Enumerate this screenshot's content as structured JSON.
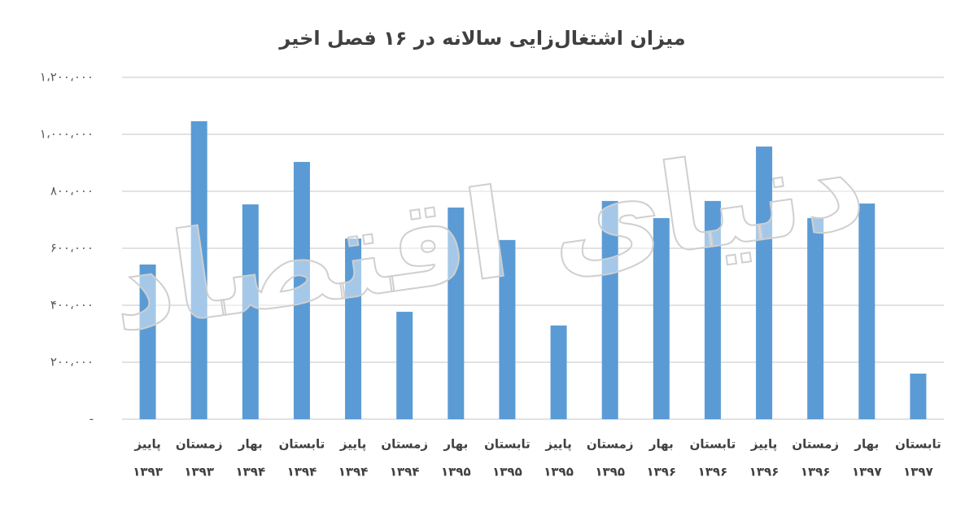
{
  "chart_data": {
    "type": "bar",
    "title": "میزان اشتغال‌زایی سالانه در ۱۶ فصل اخیر",
    "watermark": "دنیای اقتصاد",
    "categories": [
      [
        "پاییز",
        "۱۳۹۳"
      ],
      [
        "زمستان",
        "۱۳۹۳"
      ],
      [
        "بهار",
        "۱۳۹۴"
      ],
      [
        "تابستان",
        "۱۳۹۴"
      ],
      [
        "پاییز",
        "۱۳۹۴"
      ],
      [
        "زمستان",
        "۱۳۹۴"
      ],
      [
        "بهار",
        "۱۳۹۵"
      ],
      [
        "تابستان",
        "۱۳۹۵"
      ],
      [
        "پاییز",
        "۱۳۹۵"
      ],
      [
        "زمستان",
        "۱۳۹۵"
      ],
      [
        "بهار",
        "۱۳۹۶"
      ],
      [
        "تابستان",
        "۱۳۹۶"
      ],
      [
        "پاییز",
        "۱۳۹۶"
      ],
      [
        "زمستان",
        "۱۳۹۶"
      ],
      [
        "بهار",
        "۱۳۹۷"
      ],
      [
        "تابستان",
        "۱۳۹۷"
      ]
    ],
    "values": [
      543000,
      1046000,
      754000,
      903000,
      634000,
      377000,
      743000,
      629000,
      329000,
      766000,
      706000,
      766000,
      957000,
      706000,
      757000,
      160000
    ],
    "color": "#5b9bd5",
    "ylim": [
      0,
      1200000
    ],
    "yticks": [
      {
        "value": 0,
        "label": "-"
      },
      {
        "value": 200000,
        "label": "۲۰۰،۰۰۰"
      },
      {
        "value": 400000,
        "label": "۴۰۰،۰۰۰"
      },
      {
        "value": 600000,
        "label": "۶۰۰،۰۰۰"
      },
      {
        "value": 800000,
        "label": "۸۰۰،۰۰۰"
      },
      {
        "value": 1000000,
        "label": "۱،۰۰۰،۰۰۰"
      },
      {
        "value": 1200000,
        "label": "۱،۲۰۰،۰۰۰"
      }
    ],
    "grid": true
  }
}
